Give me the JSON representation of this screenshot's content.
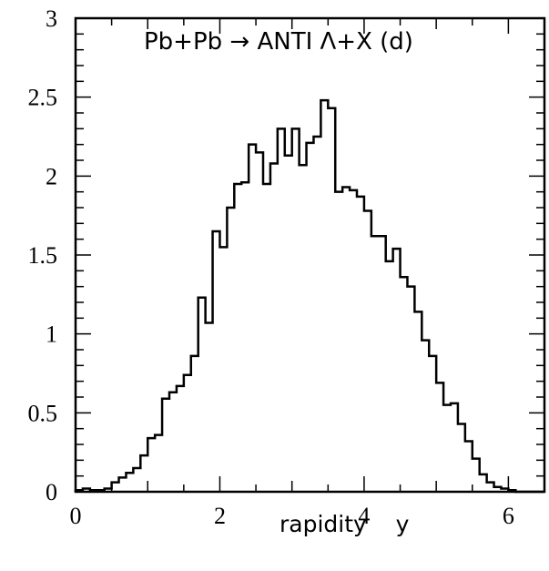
{
  "chart_data": {
    "type": "histogram",
    "title": "Pb+Pb  →  ANTI Λ+X  (d)",
    "xlabel": "rapidity    y",
    "ylabel": "",
    "xlim": [
      0,
      6.5
    ],
    "ylim": [
      0,
      3
    ],
    "grid": false,
    "x_ticks": [
      0,
      2,
      4,
      6
    ],
    "x_tick_labels": [
      "0",
      "2",
      "4",
      "6"
    ],
    "y_ticks": [
      0,
      0.5,
      1,
      1.5,
      2,
      2.5,
      3
    ],
    "y_tick_labels": [
      "0",
      "0.5",
      "1",
      "1.5",
      "2",
      "2.5",
      "3"
    ],
    "bin_width": 0.1,
    "bin_start": 0,
    "values": [
      0.01,
      0.02,
      0.01,
      0.01,
      0.02,
      0.06,
      0.09,
      0.12,
      0.15,
      0.23,
      0.34,
      0.36,
      0.59,
      0.63,
      0.67,
      0.74,
      0.86,
      1.23,
      1.07,
      1.65,
      1.55,
      1.8,
      1.95,
      1.96,
      2.2,
      2.15,
      1.95,
      2.08,
      2.3,
      2.13,
      2.3,
      2.07,
      2.21,
      2.25,
      2.48,
      2.43,
      1.9,
      1.93,
      1.91,
      1.87,
      1.78,
      1.62,
      1.62,
      1.46,
      1.54,
      1.36,
      1.3,
      1.14,
      0.96,
      0.86,
      0.69,
      0.55,
      0.56,
      0.43,
      0.32,
      0.21,
      0.11,
      0.06,
      0.03,
      0.02,
      0.01,
      0.0,
      0.0,
      0.0,
      0.0
    ]
  }
}
